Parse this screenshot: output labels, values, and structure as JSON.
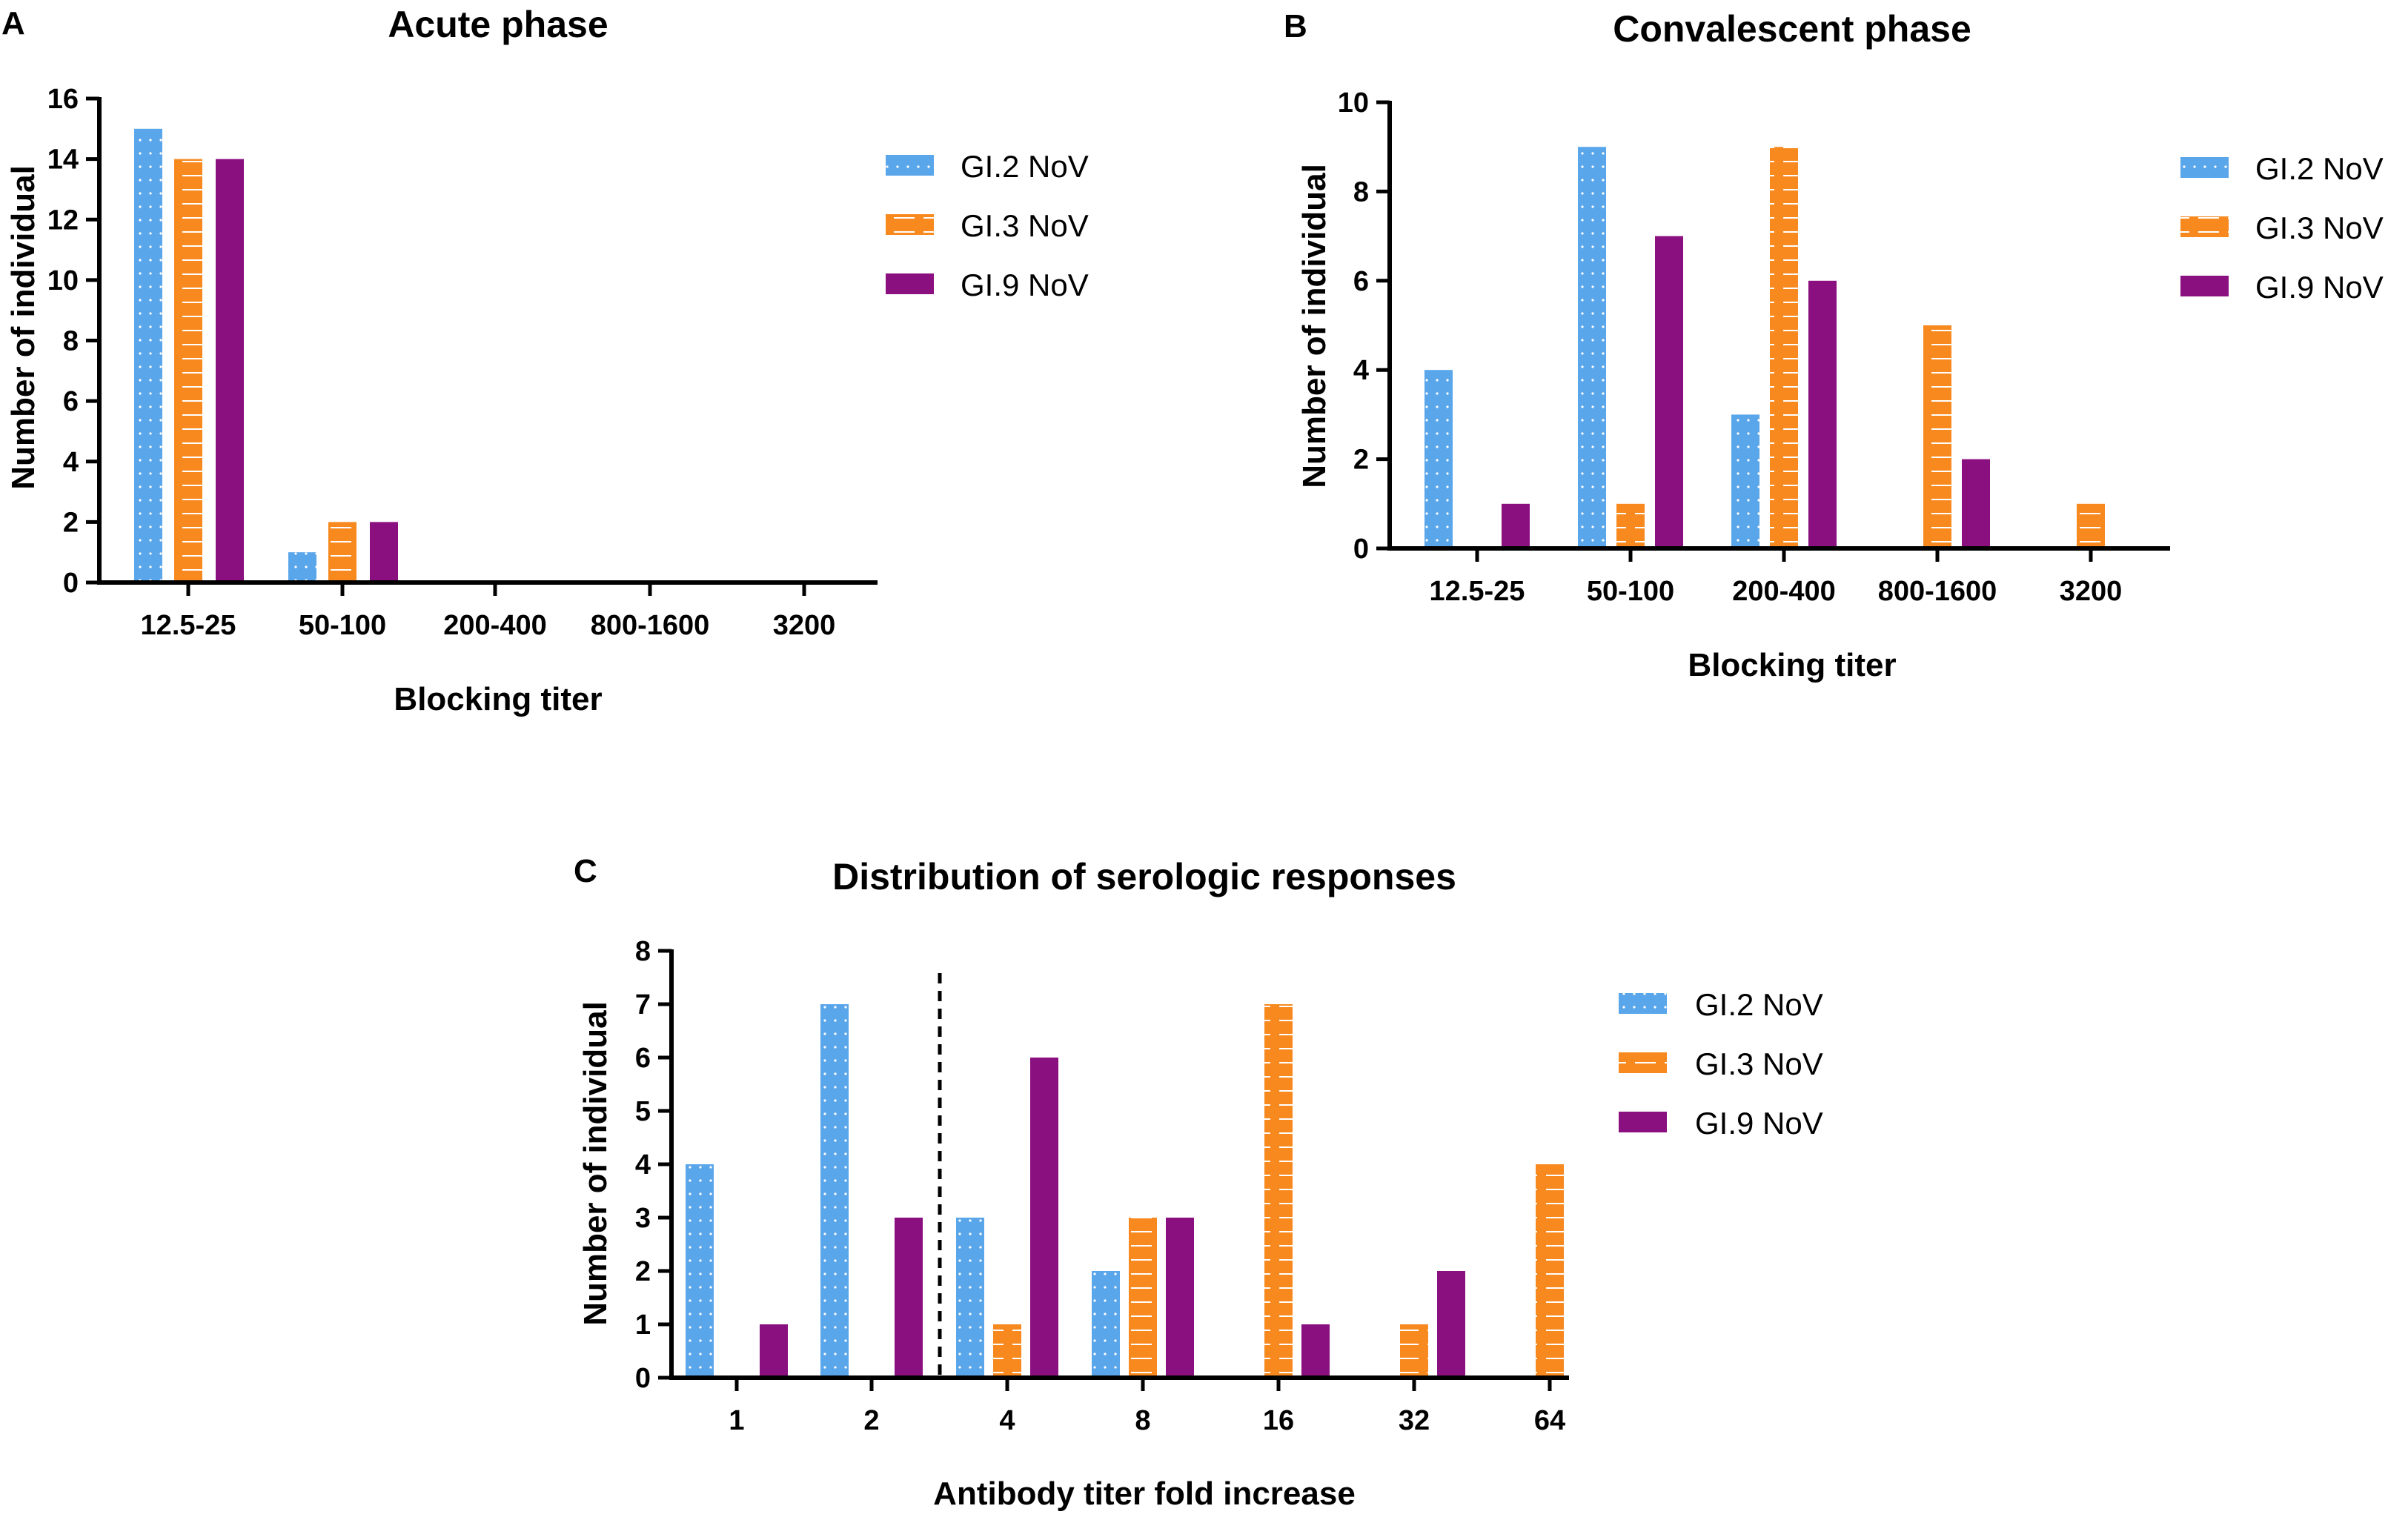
{
  "colors": {
    "GI.2 NoV": "#5aa6ea",
    "GI.3 NoV": "#f7891f",
    "GI.9 NoV": "#8a0f7f",
    "axis": "#000000",
    "background": "#ffffff"
  },
  "chart_data": [
    {
      "panel": "A",
      "type": "bar",
      "title": "Acute phase",
      "xlabel": "Blocking titer",
      "ylabel": "Number of individual",
      "categories": [
        "12.5-25",
        "50-100",
        "200-400",
        "800-1600",
        "3200"
      ],
      "ylim": [
        0,
        16
      ],
      "yticks": [
        0,
        2,
        4,
        6,
        8,
        10,
        12,
        14,
        16
      ],
      "legend_position": "top-right",
      "series": [
        {
          "name": "GI.2 NoV",
          "pattern": "dots",
          "values": [
            15,
            1,
            0,
            0,
            0
          ]
        },
        {
          "name": "GI.3 NoV",
          "pattern": "dashes",
          "values": [
            14,
            2,
            0,
            0,
            0
          ]
        },
        {
          "name": "GI.9 NoV",
          "pattern": "solid",
          "values": [
            14,
            2,
            0,
            0,
            0
          ]
        }
      ]
    },
    {
      "panel": "B",
      "type": "bar",
      "title": "Convalescent phase",
      "xlabel": "Blocking titer",
      "ylabel": "Number of individual",
      "categories": [
        "12.5-25",
        "50-100",
        "200-400",
        "800-1600",
        "3200"
      ],
      "ylim": [
        0,
        10
      ],
      "yticks": [
        0,
        2,
        4,
        6,
        8,
        10
      ],
      "legend_position": "top-right",
      "series": [
        {
          "name": "GI.2 NoV",
          "pattern": "dots",
          "values": [
            4,
            9,
            3,
            0,
            0
          ]
        },
        {
          "name": "GI.3 NoV",
          "pattern": "dashes",
          "values": [
            0,
            1,
            9,
            5,
            1
          ]
        },
        {
          "name": "GI.9 NoV",
          "pattern": "solid",
          "values": [
            1,
            7,
            6,
            2,
            0
          ]
        }
      ]
    },
    {
      "panel": "C",
      "type": "bar",
      "title": "Distribution of serologic responses",
      "xlabel": "Antibody titer fold increase",
      "ylabel": "Number of individual",
      "categories": [
        "1",
        "2",
        "4",
        "8",
        "16",
        "32",
        "64"
      ],
      "ylim": [
        0,
        8
      ],
      "yticks": [
        0,
        1,
        2,
        3,
        4,
        5,
        6,
        7,
        8
      ],
      "legend_position": "top-right",
      "annotations": [
        {
          "type": "dashed-vertical-line",
          "between_categories": [
            "2",
            "4"
          ]
        }
      ],
      "series": [
        {
          "name": "GI.2 NoV",
          "pattern": "dots",
          "values": [
            4,
            7,
            3,
            2,
            0,
            0,
            0
          ]
        },
        {
          "name": "GI.3 NoV",
          "pattern": "dashes",
          "values": [
            0,
            0,
            1,
            3,
            7,
            1,
            4
          ]
        },
        {
          "name": "GI.9 NoV",
          "pattern": "solid",
          "values": [
            1,
            3,
            6,
            3,
            1,
            2,
            0
          ]
        }
      ]
    }
  ]
}
